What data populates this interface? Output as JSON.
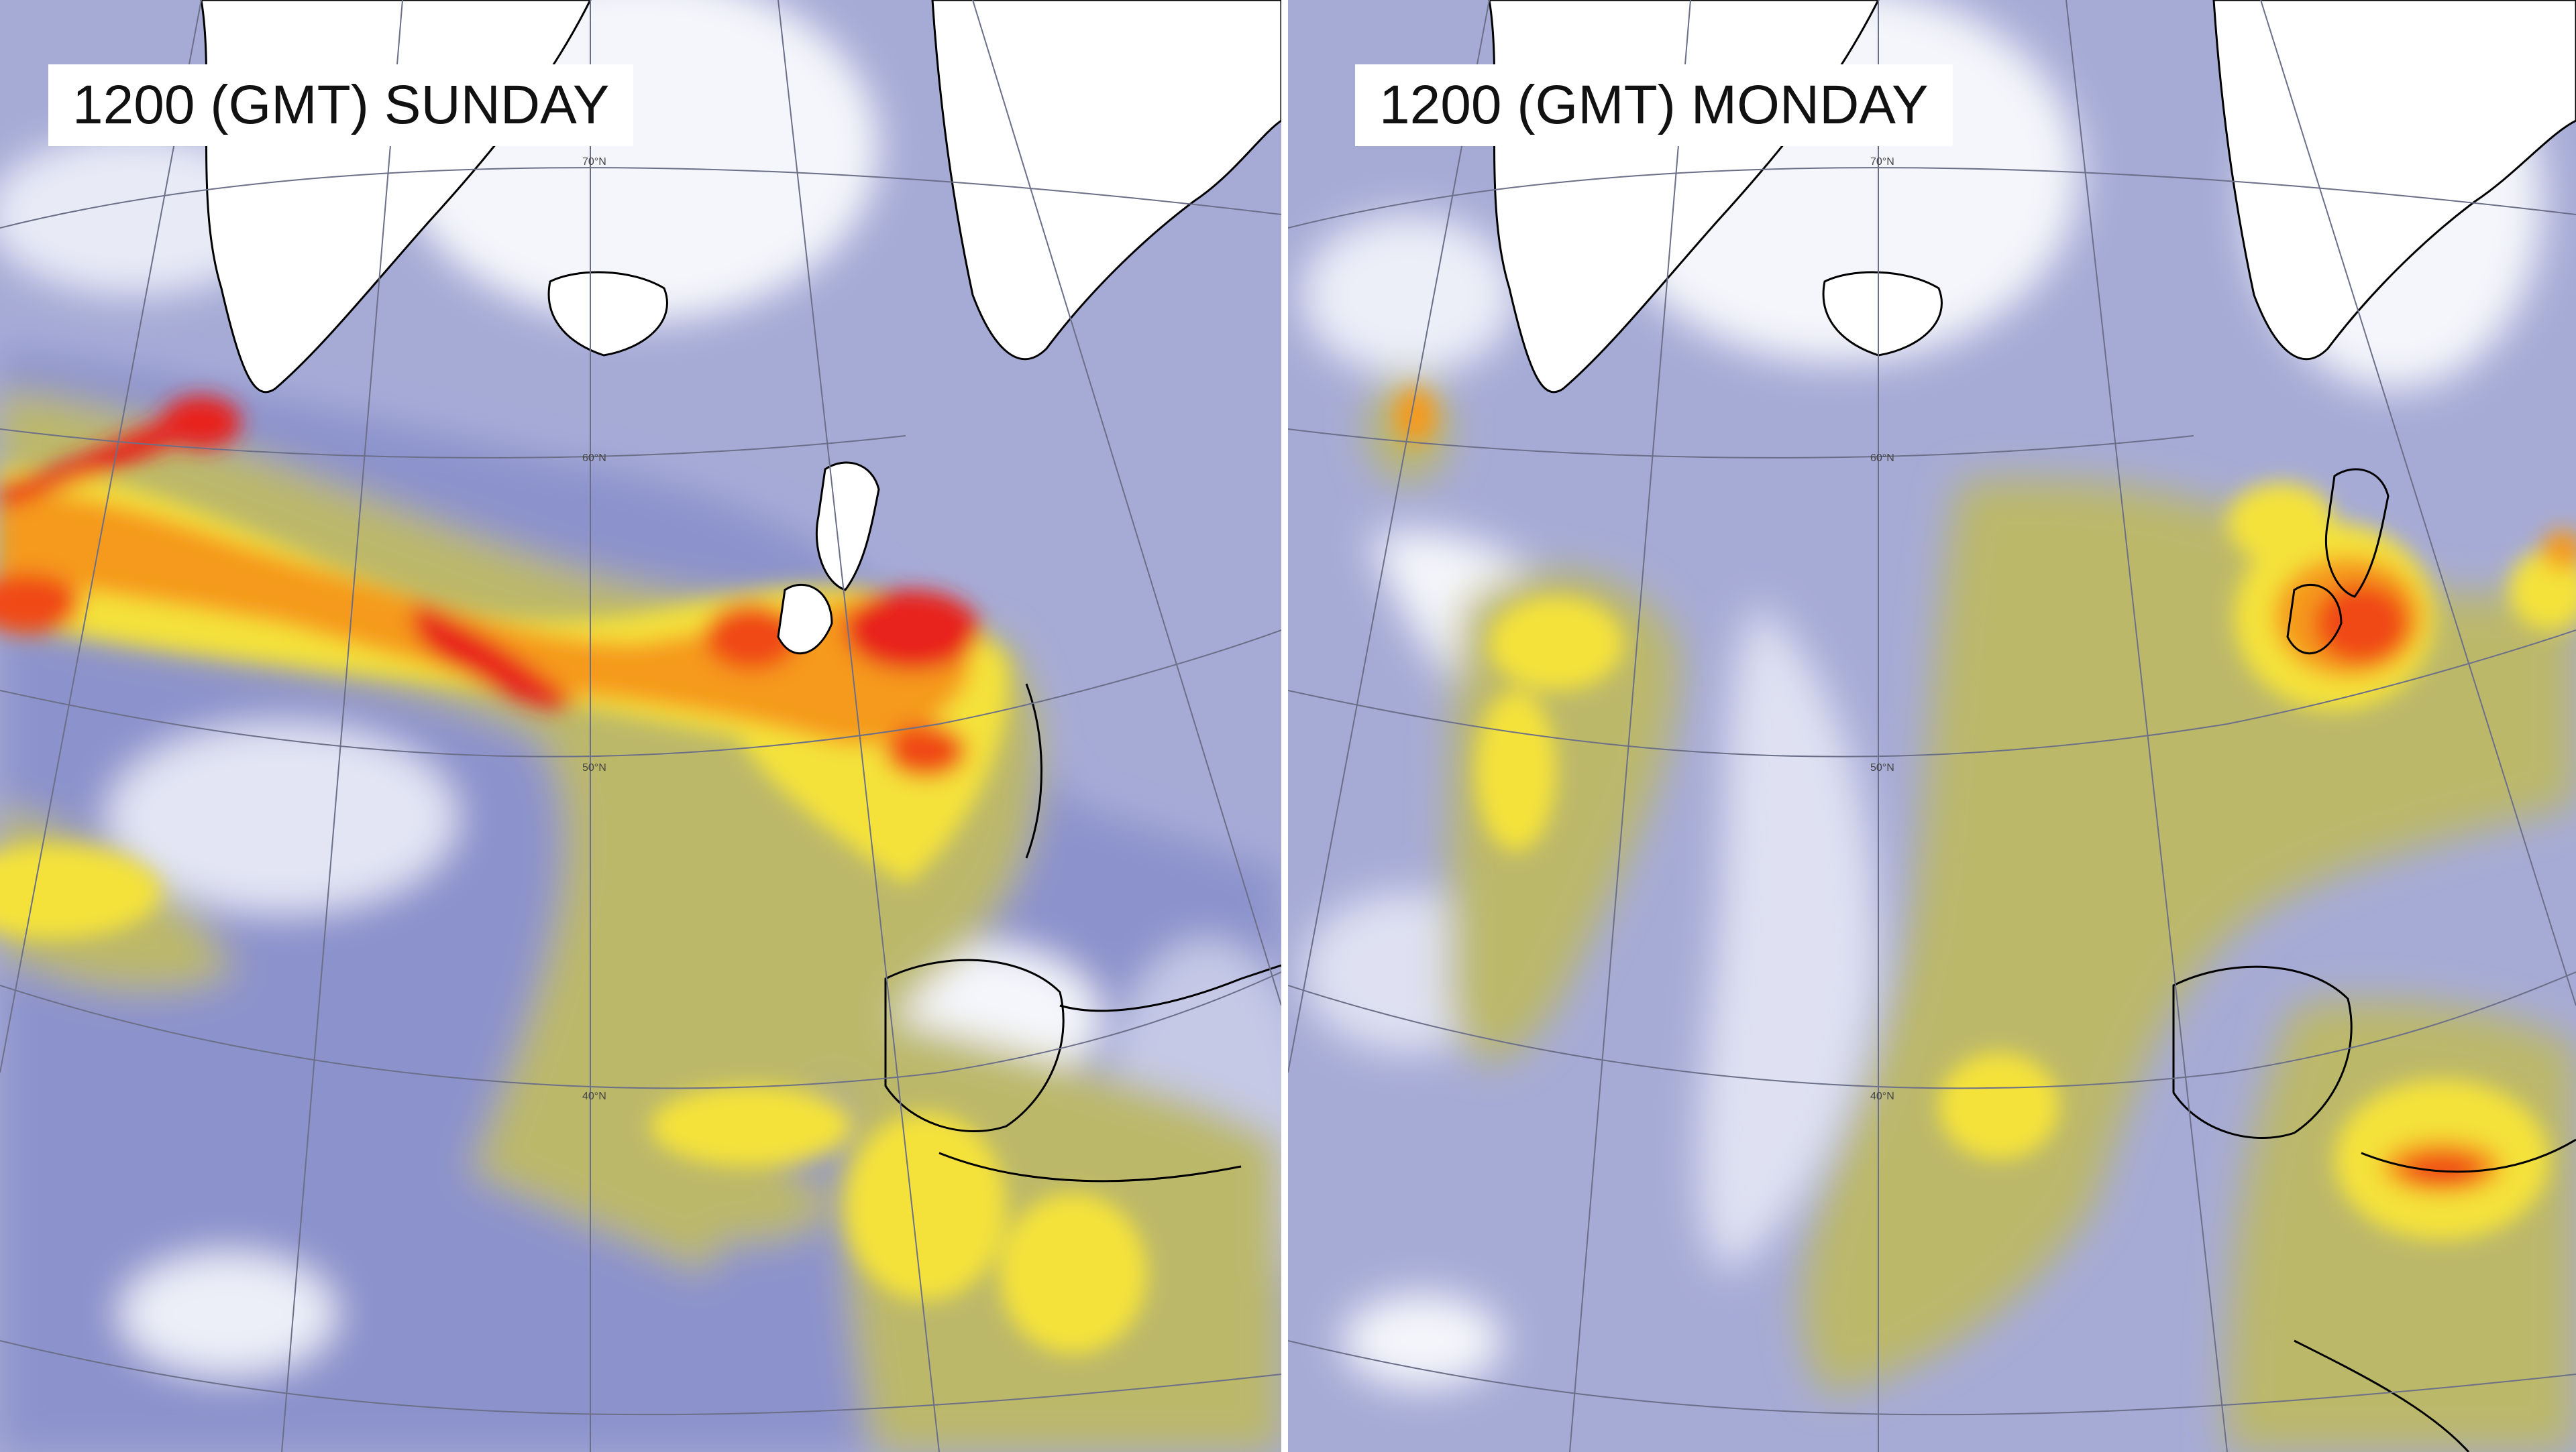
{
  "panels": [
    {
      "id": "sunday",
      "title": "1200 (GMT) SUNDAY"
    },
    {
      "id": "monday",
      "title": "1200 (GMT) MONDAY"
    }
  ],
  "graticule_labels": [
    "70°N",
    "60°N",
    "50°N",
    "40°N"
  ],
  "colors": {
    "background_low": "#cfd3ea",
    "lavender": "#a6abd6",
    "periwinkle": "#8c93cc",
    "olive": "#bcb86a",
    "olive_light": "#d8cf72",
    "yellow": "#f4e23a",
    "orange": "#f59a1f",
    "red_orange": "#f04a14",
    "red": "#e8201a",
    "white_area": "#f5f6fb",
    "coast": "#000000"
  }
}
